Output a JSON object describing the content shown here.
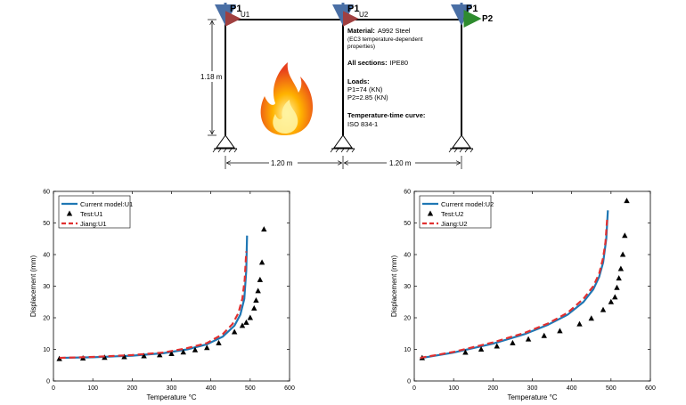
{
  "frame": {
    "load_labels": [
      "P1",
      "P1",
      "P1"
    ],
    "p2_label": "P2",
    "u1_label": "U1",
    "u2_label": "U2",
    "height_label": "1.18 m",
    "span_labels": [
      "1.20 m",
      "1.20 m"
    ],
    "notes": {
      "material_head": "Material:",
      "material_value": "A992 Steel",
      "material_line2": "(EC3 temperature-dependent",
      "material_line3": "properties)",
      "sections_head": "All sections:",
      "sections_value": "IPE80",
      "loads_head": "Loads:",
      "load_p1": "P1=74 (KN)",
      "load_p2": "P2=2.85 (KN)",
      "curve_head": "Temperature-time curve:",
      "curve_value": "ISO 834-1"
    },
    "colors": {
      "frame": "#000000",
      "load_arrow": "#4a6fa5",
      "u_arrow": "#a04040",
      "p2_arrow": "#2e8b2e"
    },
    "icon": "fire-icon"
  },
  "chart_data": [
    {
      "type": "line",
      "xlabel": "Temperature °C",
      "ylabel": "Displacement (mm)",
      "xlim": [
        0,
        600
      ],
      "ylim": [
        0,
        60
      ],
      "xticks": [
        "0",
        "100",
        "200",
        "300",
        "400",
        "500",
        "600"
      ],
      "yticks": [
        "0",
        "10",
        "20",
        "30",
        "40",
        "50",
        "60"
      ],
      "grid": false,
      "legend_position": "top-left",
      "series": [
        {
          "name": "Current model:U1",
          "style": "line",
          "color": "#1f77b4",
          "x": [
            15,
            100,
            200,
            280,
            340,
            390,
            430,
            460,
            475,
            485,
            490,
            492
          ],
          "y": [
            7.3,
            7.5,
            8.0,
            8.8,
            10.0,
            11.6,
            14.0,
            17.5,
            21.0,
            26.0,
            35.0,
            46.0
          ]
        },
        {
          "name": "Test:U1",
          "style": "markers",
          "color": "#000000",
          "x": [
            15,
            75,
            130,
            180,
            230,
            270,
            300,
            330,
            360,
            390,
            420,
            460,
            480,
            490,
            500,
            510,
            515,
            520,
            525,
            530,
            535
          ],
          "y": [
            7.0,
            7.2,
            7.4,
            7.6,
            7.9,
            8.2,
            8.6,
            9.1,
            9.8,
            10.5,
            12.0,
            15.5,
            17.5,
            18.5,
            20.0,
            23.0,
            25.5,
            28.5,
            32.0,
            37.5,
            48.0
          ]
        },
        {
          "name": "Jiang:U1",
          "style": "dashed",
          "color": "#e03030",
          "x": [
            15,
            100,
            200,
            280,
            340,
            390,
            430,
            455,
            470,
            480,
            486,
            490
          ],
          "y": [
            7.3,
            7.6,
            8.2,
            9.0,
            10.4,
            12.0,
            14.8,
            18.0,
            21.5,
            26.0,
            32.0,
            41.0
          ]
        }
      ]
    },
    {
      "type": "line",
      "xlabel": "Temperature °C",
      "ylabel": "Displacement (mm)",
      "xlim": [
        0,
        600
      ],
      "ylim": [
        0,
        60
      ],
      "xticks": [
        "0",
        "100",
        "200",
        "300",
        "400",
        "500",
        "600"
      ],
      "yticks": [
        "0",
        "10",
        "20",
        "30",
        "40",
        "50",
        "60"
      ],
      "grid": false,
      "legend_position": "top-left",
      "series": [
        {
          "name": "Current model:U2",
          "style": "line",
          "color": "#1f77b4",
          "x": [
            15,
            100,
            200,
            280,
            340,
            390,
            430,
            455,
            470,
            480,
            488,
            492
          ],
          "y": [
            7.2,
            9.0,
            11.8,
            14.8,
            17.8,
            21.0,
            25.0,
            29.0,
            33.0,
            37.5,
            45.0,
            54.0
          ]
        },
        {
          "name": "Test:U2",
          "style": "markers",
          "color": "#000000",
          "x": [
            20,
            130,
            170,
            210,
            250,
            290,
            330,
            370,
            420,
            450,
            480,
            500,
            510,
            515,
            520,
            525,
            530,
            535,
            540
          ],
          "y": [
            7.3,
            9.0,
            10.0,
            11.0,
            12.0,
            13.2,
            14.3,
            15.8,
            18.0,
            19.8,
            22.5,
            25.0,
            26.5,
            29.5,
            32.5,
            35.5,
            40.0,
            46.0,
            57.0
          ]
        },
        {
          "name": "Jiang:U2",
          "style": "dashed",
          "color": "#e03030",
          "x": [
            15,
            100,
            200,
            280,
            340,
            390,
            430,
            455,
            470,
            480,
            486,
            490
          ],
          "y": [
            7.3,
            9.2,
            12.2,
            15.2,
            18.2,
            21.6,
            26.0,
            30.0,
            34.0,
            39.0,
            44.0,
            51.0
          ]
        }
      ]
    }
  ]
}
